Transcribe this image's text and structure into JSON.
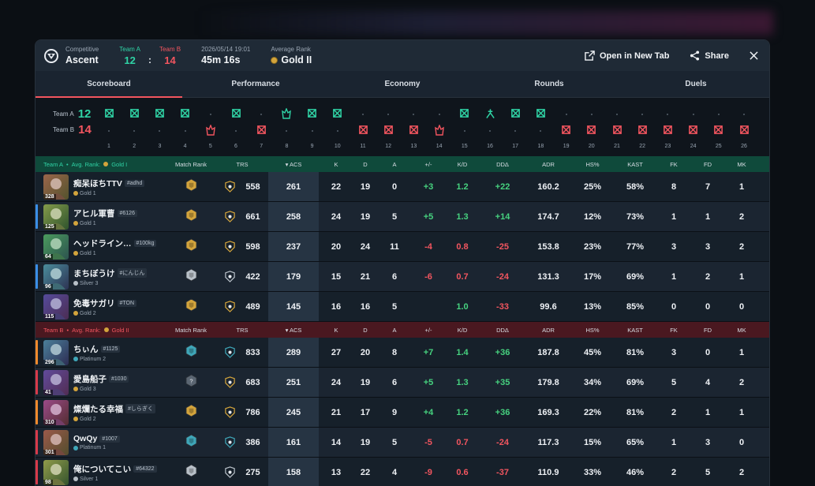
{
  "header": {
    "mode": "Competitive",
    "map": "Ascent",
    "team_a_label": "Team A",
    "team_b_label": "Team B",
    "team_a_score": "12",
    "team_b_score": "14",
    "colon": ":",
    "date": "2026/05/14 19:01",
    "duration": "45m 16s",
    "avg_rank_label": "Average Rank",
    "avg_rank": "Gold II",
    "open_new_tab": "Open in New Tab",
    "share": "Share"
  },
  "tabs": [
    "Scoreboard",
    "Performance",
    "Economy",
    "Rounds",
    "Duels"
  ],
  "rounds": {
    "team_a_label": "Team A",
    "team_b_label": "Team B",
    "team_a_score": "12",
    "team_b_score": "14",
    "round_numbers": [
      "1",
      "2",
      "3",
      "4",
      "5",
      "6",
      "7",
      "8",
      "9",
      "10",
      "11",
      "12",
      "13",
      "14",
      "15",
      "16",
      "17",
      "18",
      "19",
      "20",
      "21",
      "22",
      "23",
      "24",
      "25",
      "26"
    ],
    "winners": [
      "A",
      "A",
      "A",
      "A",
      "B",
      "A",
      "B",
      "A",
      "A",
      "A",
      "B",
      "B",
      "B",
      "B",
      "A",
      "A",
      "A",
      "A",
      "B",
      "B",
      "B",
      "B",
      "B",
      "B",
      "B",
      "B"
    ],
    "icons": [
      "elim",
      "elim",
      "elim",
      "elim",
      "spike",
      "elim",
      "elim",
      "spike",
      "elim",
      "elim",
      "elim",
      "elim",
      "elim",
      "spike",
      "elim",
      "defuse",
      "elim",
      "elim",
      "elim",
      "elim",
      "elim",
      "elim",
      "elim",
      "elim",
      "elim",
      "elim"
    ]
  },
  "columns": {
    "match_rank": "Match Rank",
    "trs": "TRS",
    "acs": "ACS",
    "k": "K",
    "d": "D",
    "a": "A",
    "pm": "+/-",
    "kd": "K/D",
    "dda": "DDΔ",
    "adr": "ADR",
    "hs": "HS%",
    "kast": "KAST",
    "fk": "FK",
    "fd": "FD",
    "mk": "MK"
  },
  "team_a": {
    "title": "Team A",
    "avg_rank_label": "Avg. Rank:",
    "avg_rank": "Gold I",
    "players": [
      {
        "name": "痴呆ほちTTV",
        "tag": "#adhd",
        "rank": "Gold 1",
        "level": "328",
        "side": "",
        "trs": "558",
        "acs": "261",
        "k": "22",
        "d": "19",
        "a": "0",
        "pm": "+3",
        "kd": "1.2",
        "dda": "+22",
        "adr": "160.2",
        "hs": "25%",
        "kast": "58%",
        "fk": "8",
        "fd": "7",
        "mk": "1"
      },
      {
        "name": "アヒル軍曹",
        "tag": "#6126",
        "rank": "Gold 1",
        "level": "125",
        "side": "#3a8ee6",
        "trs": "661",
        "acs": "258",
        "k": "24",
        "d": "19",
        "a": "5",
        "pm": "+5",
        "kd": "1.3",
        "dda": "+14",
        "adr": "174.7",
        "hs": "12%",
        "kast": "73%",
        "fk": "1",
        "fd": "1",
        "mk": "2"
      },
      {
        "name": "ヘッドライン…",
        "tag": "#100kg",
        "rank": "Gold 1",
        "level": "64",
        "side": "",
        "trs": "598",
        "acs": "237",
        "k": "20",
        "d": "24",
        "a": "11",
        "pm": "-4",
        "kd": "0.8",
        "dda": "-25",
        "adr": "153.8",
        "hs": "23%",
        "kast": "77%",
        "fk": "3",
        "fd": "3",
        "mk": "2"
      },
      {
        "name": "まちぼうけ",
        "tag": "#にんじん",
        "rank": "Silver 3",
        "level": "96",
        "side": "#3a8ee6",
        "trs": "422",
        "acs": "179",
        "k": "15",
        "d": "21",
        "a": "6",
        "pm": "-6",
        "kd": "0.7",
        "dda": "-24",
        "adr": "131.3",
        "hs": "17%",
        "kast": "69%",
        "fk": "1",
        "fd": "2",
        "mk": "1"
      },
      {
        "name": "免毒サガリ",
        "tag": "#TON",
        "rank": "Gold 2",
        "level": "115",
        "side": "",
        "trs": "489",
        "acs": "145",
        "k": "16",
        "d": "16",
        "a": "5",
        "pm": "",
        "kd": "1.0",
        "dda": "-33",
        "adr": "99.6",
        "hs": "13%",
        "kast": "85%",
        "fk": "0",
        "fd": "0",
        "mk": "0"
      }
    ]
  },
  "team_b": {
    "title": "Team B",
    "avg_rank_label": "Avg. Rank:",
    "avg_rank": "Gold II",
    "players": [
      {
        "name": "ちぃん",
        "tag": "#1125",
        "rank": "Platinum 2",
        "level": "296",
        "side": "#f08a2c",
        "trs": "833",
        "acs": "289",
        "k": "27",
        "d": "20",
        "a": "8",
        "pm": "+7",
        "kd": "1.4",
        "dda": "+36",
        "adr": "187.8",
        "hs": "45%",
        "kast": "81%",
        "fk": "3",
        "fd": "0",
        "mk": "1"
      },
      {
        "name": "愛島船子",
        "tag": "#1030",
        "rank": "Gold 3",
        "level": "41",
        "side": "#d83a4a",
        "trs": "683",
        "acs": "251",
        "k": "24",
        "d": "19",
        "a": "6",
        "pm": "+5",
        "kd": "1.3",
        "dda": "+35",
        "adr": "179.8",
        "hs": "34%",
        "kast": "69%",
        "fk": "5",
        "fd": "4",
        "mk": "2"
      },
      {
        "name": "燦爛たる幸福",
        "tag": "#しらぎく",
        "rank": "Gold 2",
        "level": "310",
        "side": "#f08a2c",
        "trs": "786",
        "acs": "245",
        "k": "21",
        "d": "17",
        "a": "9",
        "pm": "+4",
        "kd": "1.2",
        "dda": "+36",
        "adr": "169.3",
        "hs": "22%",
        "kast": "81%",
        "fk": "2",
        "fd": "1",
        "mk": "1"
      },
      {
        "name": "QwQy",
        "tag": "#1007",
        "rank": "Platinum 1",
        "level": "301",
        "side": "#d83a4a",
        "trs": "386",
        "acs": "161",
        "k": "14",
        "d": "19",
        "a": "5",
        "pm": "-5",
        "kd": "0.7",
        "dda": "-24",
        "adr": "117.3",
        "hs": "15%",
        "kast": "65%",
        "fk": "1",
        "fd": "3",
        "mk": "0"
      },
      {
        "name": "俺についてこい",
        "tag": "#64322",
        "rank": "Silver 1",
        "level": "98",
        "side": "#d83a4a",
        "trs": "275",
        "acs": "158",
        "k": "13",
        "d": "22",
        "a": "4",
        "pm": "-9",
        "kd": "0.6",
        "dda": "-37",
        "adr": "110.9",
        "hs": "33%",
        "kast": "46%",
        "fk": "2",
        "fd": "5",
        "mk": "2"
      }
    ]
  },
  "colors": {
    "team_a": "#2fd3a5",
    "team_b": "#f2555f",
    "positive": "#46d27f",
    "negative": "#f2555f",
    "gold": "#d3a43c",
    "silver": "#b8c0c8",
    "platinum": "#3fa6b8"
  }
}
